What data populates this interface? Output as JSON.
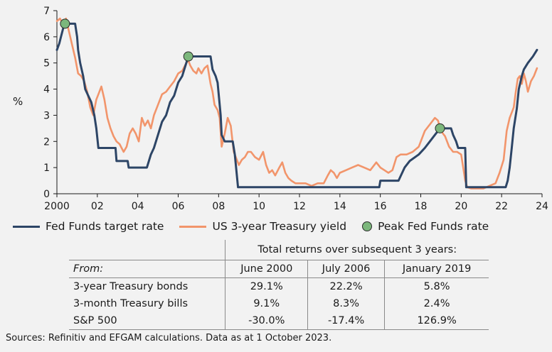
{
  "chart_data": {
    "type": "line",
    "ylabel": "%",
    "xlim": [
      2000,
      2024
    ],
    "ylim": [
      0,
      7
    ],
    "x_ticks": [
      2000,
      2002,
      2004,
      2006,
      2008,
      2010,
      2012,
      2014,
      2016,
      2018,
      2020,
      2022,
      2024
    ],
    "x_tick_labels": [
      "2000",
      "02",
      "04",
      "06",
      "08",
      "10",
      "12",
      "14",
      "16",
      "18",
      "20",
      "22",
      "24"
    ],
    "y_ticks": [
      0,
      1,
      2,
      3,
      4,
      5,
      6,
      7
    ],
    "y_tick_labels": [
      "0",
      "1",
      "2",
      "3",
      "4",
      "5",
      "6",
      "7"
    ],
    "series": [
      {
        "name": "Fed Funds target rate",
        "color": "#2d4566",
        "x": [
          2000.0,
          2000.12,
          2000.2,
          2000.37,
          2000.5,
          2000.9,
          2001.0,
          2001.05,
          2001.15,
          2001.3,
          2001.4,
          2001.55,
          2001.7,
          2001.85,
          2001.95,
          2002.05,
          2002.9,
          2002.95,
          2003.5,
          2003.55,
          2004.45,
          2004.55,
          2004.65,
          2004.8,
          2005.0,
          2005.2,
          2005.4,
          2005.6,
          2005.8,
          2006.0,
          2006.2,
          2006.4,
          2006.5,
          2007.6,
          2007.7,
          2007.85,
          2007.95,
          2008.1,
          2008.15,
          2008.3,
          2008.7,
          2008.8,
          2008.96,
          2015.95,
          2016.0,
          2016.9,
          2017.2,
          2017.45,
          2017.9,
          2018.2,
          2018.45,
          2018.7,
          2018.95,
          2019.5,
          2019.6,
          2019.75,
          2019.85,
          2020.2,
          2020.25,
          2022.2,
          2022.3,
          2022.4,
          2022.5,
          2022.6,
          2022.75,
          2022.85,
          2023.0,
          2023.1,
          2023.3,
          2023.55,
          2023.75
        ],
        "y": [
          5.5,
          5.75,
          6.0,
          6.5,
          6.5,
          6.5,
          6.0,
          5.5,
          5.0,
          4.5,
          4.0,
          3.75,
          3.5,
          3.0,
          2.5,
          1.75,
          1.75,
          1.25,
          1.25,
          1.0,
          1.0,
          1.25,
          1.5,
          1.75,
          2.25,
          2.75,
          3.0,
          3.5,
          3.75,
          4.25,
          4.5,
          5.0,
          5.25,
          5.25,
          4.75,
          4.5,
          4.25,
          3.0,
          2.25,
          2.0,
          2.0,
          1.5,
          0.25,
          0.25,
          0.5,
          0.5,
          1.0,
          1.25,
          1.5,
          1.75,
          2.0,
          2.25,
          2.5,
          2.5,
          2.25,
          2.0,
          1.75,
          1.75,
          0.25,
          0.25,
          0.5,
          1.0,
          1.75,
          2.5,
          3.25,
          4.0,
          4.5,
          4.75,
          5.0,
          5.25,
          5.5
        ]
      },
      {
        "name": "US 3-year Treasury yield",
        "color": "#f2956b",
        "x": [
          2000.0,
          2000.15,
          2000.3,
          2000.45,
          2000.6,
          2000.75,
          2000.9,
          2001.05,
          2001.2,
          2001.35,
          2001.5,
          2001.65,
          2001.8,
          2001.95,
          2002.1,
          2002.2,
          2002.35,
          2002.5,
          2002.65,
          2002.8,
          2002.95,
          2003.1,
          2003.3,
          2003.45,
          2003.6,
          2003.75,
          2003.9,
          2004.05,
          2004.2,
          2004.35,
          2004.5,
          2004.65,
          2004.8,
          2005.0,
          2005.2,
          2005.4,
          2005.6,
          2005.8,
          2006.0,
          2006.2,
          2006.4,
          2006.5,
          2006.6,
          2006.75,
          2006.9,
          2007.0,
          2007.15,
          2007.3,
          2007.45,
          2007.6,
          2007.7,
          2007.8,
          2007.95,
          2008.05,
          2008.15,
          2008.3,
          2008.45,
          2008.6,
          2008.75,
          2008.9,
          2009.0,
          2009.15,
          2009.3,
          2009.45,
          2009.6,
          2009.8,
          2010.0,
          2010.2,
          2010.35,
          2010.5,
          2010.65,
          2010.8,
          2011.0,
          2011.15,
          2011.3,
          2011.45,
          2011.6,
          2011.8,
          2012.0,
          2012.3,
          2012.6,
          2012.9,
          2013.2,
          2013.4,
          2013.55,
          2013.7,
          2013.85,
          2014.0,
          2014.3,
          2014.6,
          2014.9,
          2015.2,
          2015.5,
          2015.8,
          2016.0,
          2016.2,
          2016.4,
          2016.6,
          2016.8,
          2017.0,
          2017.3,
          2017.6,
          2017.9,
          2018.2,
          2018.5,
          2018.7,
          2018.85,
          2019.0,
          2019.2,
          2019.4,
          2019.6,
          2019.8,
          2020.0,
          2020.1,
          2020.2,
          2020.3,
          2020.5,
          2020.8,
          2021.1,
          2021.4,
          2021.7,
          2021.9,
          2022.1,
          2022.25,
          2022.4,
          2022.5,
          2022.6,
          2022.7,
          2022.8,
          2022.9,
          2023.0,
          2023.1,
          2023.2,
          2023.3,
          2023.45,
          2023.6,
          2023.75
        ],
        "y": [
          6.6,
          6.7,
          6.5,
          6.7,
          6.2,
          5.7,
          5.2,
          4.6,
          4.5,
          4.3,
          3.9,
          3.3,
          3.0,
          3.6,
          3.9,
          4.1,
          3.6,
          2.9,
          2.5,
          2.2,
          2.0,
          1.9,
          1.6,
          1.8,
          2.3,
          2.5,
          2.3,
          2.0,
          2.9,
          2.6,
          2.8,
          2.5,
          3.0,
          3.4,
          3.8,
          3.9,
          4.1,
          4.3,
          4.6,
          4.7,
          5.0,
          5.1,
          4.9,
          4.7,
          4.6,
          4.8,
          4.6,
          4.8,
          4.9,
          4.2,
          3.9,
          3.4,
          3.2,
          2.9,
          1.8,
          2.3,
          2.9,
          2.6,
          1.6,
          1.3,
          1.1,
          1.3,
          1.4,
          1.6,
          1.6,
          1.4,
          1.3,
          1.6,
          1.1,
          0.8,
          0.9,
          0.7,
          1.0,
          1.2,
          0.8,
          0.6,
          0.5,
          0.4,
          0.4,
          0.4,
          0.3,
          0.4,
          0.4,
          0.7,
          0.9,
          0.8,
          0.6,
          0.8,
          0.9,
          1.0,
          1.1,
          1.0,
          0.9,
          1.2,
          1.0,
          0.9,
          0.8,
          0.9,
          1.4,
          1.5,
          1.5,
          1.6,
          1.8,
          2.4,
          2.7,
          2.9,
          2.8,
          2.4,
          2.2,
          1.8,
          1.6,
          1.6,
          1.5,
          1.0,
          0.5,
          0.25,
          0.2,
          0.2,
          0.2,
          0.3,
          0.4,
          0.8,
          1.3,
          2.4,
          2.9,
          3.1,
          3.3,
          3.9,
          4.4,
          4.5,
          4.2,
          4.6,
          4.3,
          3.9,
          4.3,
          4.5,
          4.8
        ]
      }
    ],
    "peaks": {
      "name": "Peak Fed Funds rate",
      "color": "#7cb77c",
      "x": [
        2000.4,
        2006.5,
        2018.95
      ],
      "y": [
        6.5,
        5.25,
        2.5
      ]
    }
  },
  "legend": [
    {
      "label": "Fed Funds target rate"
    },
    {
      "label": "US 3-year Treasury yield"
    },
    {
      "label": "Peak Fed Funds rate"
    }
  ],
  "table": {
    "title": "Total returns over subsequent 3 years:",
    "from_label": "From:",
    "columns": [
      "June 2000",
      "July 2006",
      "January 2019"
    ],
    "rows": [
      {
        "label": "3-year Treasury bonds",
        "values": [
          "29.1%",
          "22.2%",
          "5.8%"
        ]
      },
      {
        "label": "3-month Treasury bills",
        "values": [
          "9.1%",
          "8.3%",
          "2.4%"
        ]
      },
      {
        "label": "S&P 500",
        "values": [
          "-30.0%",
          "-17.4%",
          "126.9%"
        ]
      }
    ]
  },
  "source_note": "Sources: Refinitiv and EFGAM calculations. Data as at 1 October 2023."
}
